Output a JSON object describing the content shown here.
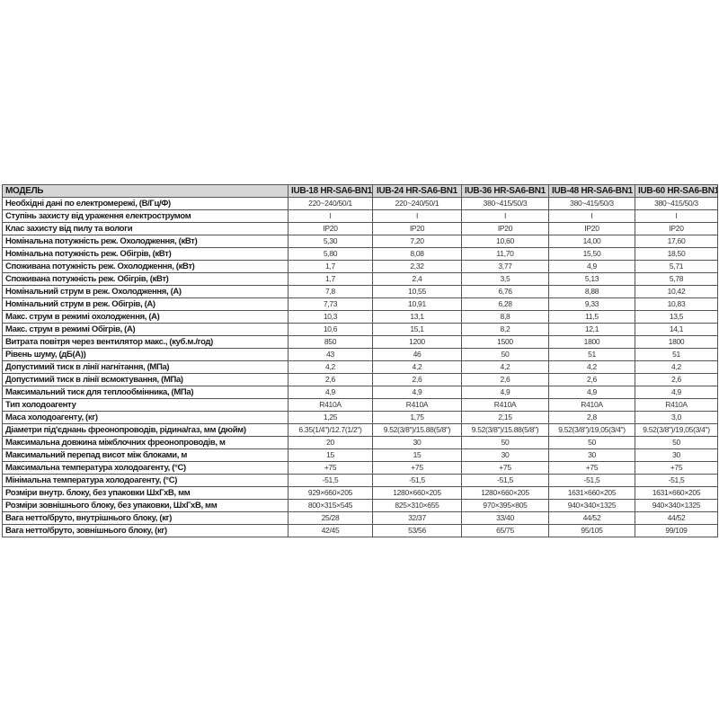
{
  "header": [
    "МОДЕЛЬ",
    "IUB-18 HR-SA6-BN1",
    "IUB-24 HR-SA6-BN1",
    "IUB-36 HR-SA6-BN1",
    "IUB-48 HR-SA6-BN1",
    "IUB-60 HR-SA6-BN1"
  ],
  "rows": [
    [
      "Необхідні дані по електромережі, (В/Гц/Ф)",
      "220~240/50/1",
      "220~240/50/1",
      "380~415/50/3",
      "380~415/50/3",
      "380~415/50/3"
    ],
    [
      "Ступінь захисту від ураження електрострумом",
      "I",
      "I",
      "I",
      "I",
      "I"
    ],
    [
      "Клас захисту від пилу та вологи",
      "IP20",
      "IP20",
      "IP20",
      "IP20",
      "IP20"
    ],
    [
      "Номінальна потужність реж. Охолодження, (кВт)",
      "5,30",
      "7,20",
      "10,60",
      "14,00",
      "17,60"
    ],
    [
      "Номінальна потужність реж. Обігрів, (кВт)",
      "5,80",
      "8,08",
      "11,70",
      "15,50",
      "18,50"
    ],
    [
      "Споживана потужність реж. Охолодження, (кВт)",
      "1,7",
      "2,32",
      "3,77",
      "4,9",
      "5,71"
    ],
    [
      "Споживана потужність реж. Обігрів, (кВт)",
      "1,7",
      "2,4",
      "3,5",
      "5,13",
      "5,78"
    ],
    [
      "Номінальний струм в реж. Охолодження, (А)",
      "7,8",
      "10,55",
      "6,76",
      "8,88",
      "10,42"
    ],
    [
      "Номінальний струм в реж. Обігрів, (А)",
      "7,73",
      "10,91",
      "6,28",
      "9,33",
      "10,83"
    ],
    [
      "Макс. струм в режимі охолодження, (А)",
      "10,3",
      "13,1",
      "8,8",
      "11,5",
      "13,5"
    ],
    [
      "Макс. струм в режимі Обігрів, (А)",
      "10,6",
      "15,1",
      "8,2",
      "12,1",
      "14,1"
    ],
    [
      "Витрата повітря через вентилятор макс., (куб.м./год)",
      "850",
      "1200",
      "1500",
      "1800",
      "1800"
    ],
    [
      "Рівень шуму, (дБ(А))",
      "43",
      "46",
      "50",
      "51",
      "51"
    ],
    [
      "Допустимий тиск в лінії нагнітання, (МПа)",
      "4,2",
      "4,2",
      "4,2",
      "4,2",
      "4,2"
    ],
    [
      "Допустимий тиск в лінії всмоктування, (МПа)",
      "2,6",
      "2,6",
      "2,6",
      "2,6",
      "2,6"
    ],
    [
      "Максимальний тиск для теплообмінника, (МПа)",
      "4,9",
      "4,9",
      "4,9",
      "4,9",
      "4,9"
    ],
    [
      "Тип холодоагенту",
      "R410A",
      "R410A",
      "R410A",
      "R410A",
      "R410A"
    ],
    [
      "Маса холодоагенту, (кг)",
      "1,25",
      "1,75",
      "2,15",
      "2,8",
      "3,0"
    ],
    [
      "Діаметри під'єднань фреонопроводів, рідина/газ, мм (дюйм)",
      "6.35(1/4\")/12.7(1/2\")",
      "9.52(3/8\")/15.88(5/8\")",
      "9.52(3/8\")/15.88(5/8\")",
      "9.52(3/8\")/19,05(3/4\")",
      "9.52(3/8\")/19,05(3/4\")"
    ],
    [
      "Максимальна довжина міжблочних фреонопроводів, м",
      "20",
      "30",
      "50",
      "50",
      "50"
    ],
    [
      "Максимальний перепад висот між блоками, м",
      "15",
      "15",
      "30",
      "30",
      "30"
    ],
    [
      "Максимальна температура холодоагенту, (°С)",
      "+75",
      "+75",
      "+75",
      "+75",
      "+75"
    ],
    [
      "Мінімальна температура холодоагенту, (°С)",
      "-51,5",
      "-51,5",
      "-51,5",
      "-51,5",
      "-51,5"
    ],
    [
      "Розміри внутр. блоку, без упаковки ШхГхВ, мм",
      "929×660×205",
      "1280×660×205",
      "1280×660×205",
      "1631×660×205",
      "1631×660×205"
    ],
    [
      "Розміри зовнішнього блоку, без упаковки, ШхГхВ, мм",
      "800×315×545",
      "825×310×655",
      "970×395×805",
      "940×340×1325",
      "940×340×1325"
    ],
    [
      "Вага нетто/бруто, внутрішнього блоку, (кг)",
      "25/28",
      "32/37",
      "33/40",
      "44/52",
      "44/52"
    ],
    [
      "Вага нетто/бруто, зовнішнього блоку, (кг)",
      "42/45",
      "53/56",
      "65/75",
      "95/105",
      "99/109"
    ]
  ]
}
